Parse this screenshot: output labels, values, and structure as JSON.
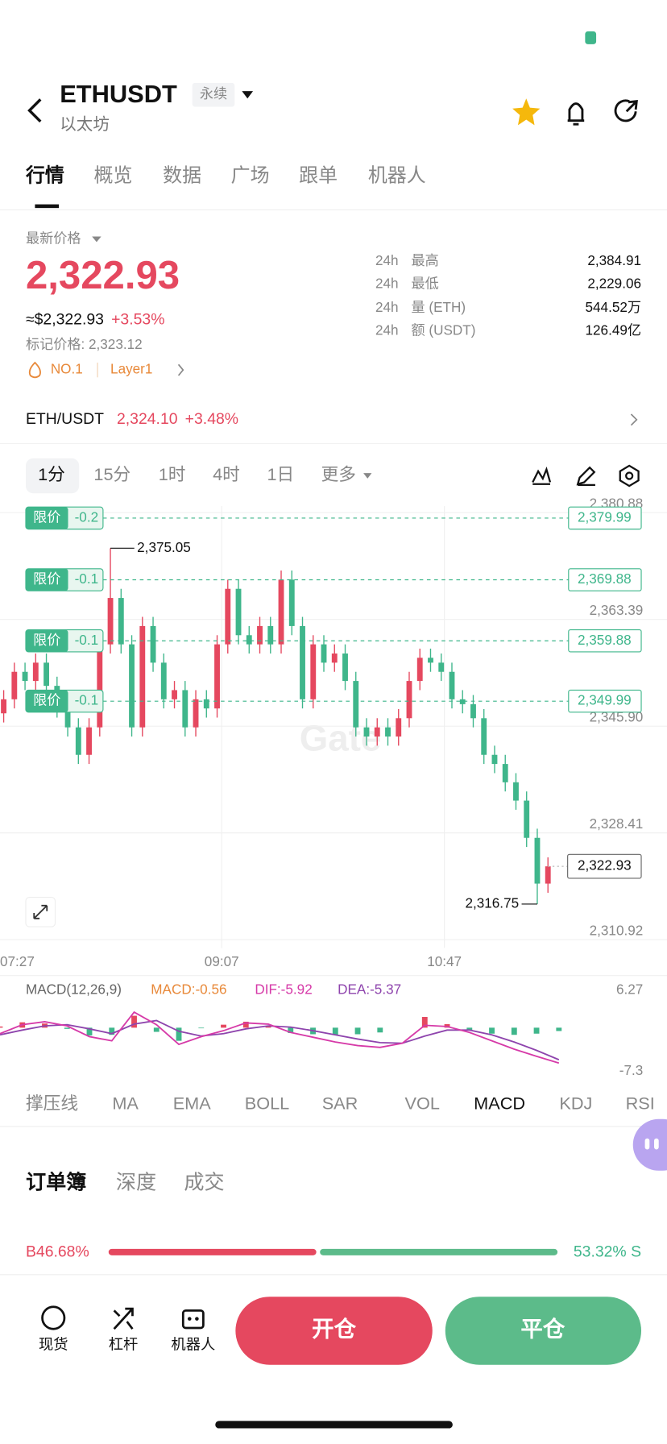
{
  "header": {
    "symbol": "ETHUSDT",
    "tag": "永续",
    "subtitle": "以太坊"
  },
  "tabs": [
    "行情",
    "概览",
    "数据",
    "广场",
    "跟单",
    "机器人"
  ],
  "price": {
    "label": "最新价格",
    "last": "2,322.93",
    "usd": "≈$2,322.93",
    "change": "+3.53%",
    "mark_price": "标记价格: 2,323.12",
    "rank": "NO.1",
    "sector": "Layer1"
  },
  "stats": [
    [
      "24h",
      "最高",
      "2,384.91"
    ],
    [
      "24h",
      "最低",
      "2,229.06"
    ],
    [
      "24h",
      "量 (ETH)",
      "544.52万"
    ],
    [
      "24h",
      "额 (USDT)",
      "126.49亿"
    ]
  ],
  "spot": {
    "pair": "ETH/USDT",
    "price": "2,324.10",
    "change": "+3.48%"
  },
  "intervals": [
    "1分",
    "15分",
    "1时",
    "4时",
    "1日",
    "更多"
  ],
  "chart_data": [
    {
      "type": "candlestick",
      "watermark": "Gate",
      "up_color": "#e5485f",
      "down_color": "#3fb68b",
      "open": [
        2348.0,
        2350.3,
        2354.8,
        2353.3,
        2356.3,
        2352.5,
        2348.8,
        2345.7,
        2341.2,
        2345.7,
        2359.3,
        2366.9,
        2359.3,
        2345.7,
        2362.3,
        2356.3,
        2350.3,
        2351.8,
        2345.7,
        2350.3,
        2348.8,
        2359.3,
        2368.4,
        2360.8,
        2359.3,
        2362.3,
        2359.3,
        2369.9,
        2362.3,
        2350.3,
        2359.3,
        2356.3,
        2357.8,
        2353.3,
        2345.7,
        2344.2,
        2345.7,
        2344.2,
        2347.2,
        2353.3,
        2357.1,
        2356.3,
        2354.8,
        2350.3,
        2349.5,
        2347.2,
        2341.2,
        2339.7,
        2336.7,
        2333.7,
        2327.6,
        2320.1
      ],
      "high": [
        2351.8,
        2356.3,
        2356.3,
        2357.8,
        2357.8,
        2354.0,
        2350.3,
        2347.2,
        2347.2,
        2360.8,
        2375.05,
        2368.4,
        2360.8,
        2363.8,
        2363.8,
        2357.8,
        2353.3,
        2353.3,
        2351.8,
        2351.8,
        2360.8,
        2369.9,
        2369.9,
        2362.3,
        2363.8,
        2363.8,
        2371.4,
        2371.4,
        2363.8,
        2360.8,
        2360.8,
        2359.3,
        2359.3,
        2354.8,
        2347.2,
        2347.2,
        2347.2,
        2348.7,
        2354.8,
        2358.6,
        2358.6,
        2357.8,
        2356.3,
        2351.8,
        2351.0,
        2348.7,
        2342.7,
        2341.2,
        2338.2,
        2335.2,
        2329.1,
        2324.4
      ],
      "low": [
        2346.5,
        2348.8,
        2351.8,
        2351.8,
        2351.0,
        2347.3,
        2344.2,
        2339.7,
        2339.7,
        2344.2,
        2357.8,
        2357.8,
        2344.2,
        2344.2,
        2354.8,
        2348.8,
        2348.8,
        2344.2,
        2344.2,
        2347.3,
        2347.3,
        2357.8,
        2359.3,
        2357.8,
        2357.8,
        2357.8,
        2357.8,
        2360.8,
        2348.8,
        2348.8,
        2354.8,
        2354.8,
        2351.8,
        2344.2,
        2342.7,
        2342.7,
        2342.7,
        2342.7,
        2345.7,
        2351.8,
        2354.8,
        2353.3,
        2348.8,
        2348.0,
        2345.7,
        2339.7,
        2338.2,
        2335.2,
        2332.2,
        2326.1,
        2316.75,
        2318.6
      ],
      "close": [
        2350.3,
        2354.8,
        2353.3,
        2356.3,
        2352.5,
        2348.8,
        2345.7,
        2341.2,
        2345.7,
        2359.3,
        2366.9,
        2359.3,
        2345.7,
        2362.3,
        2356.3,
        2350.3,
        2351.8,
        2345.7,
        2350.3,
        2348.8,
        2359.3,
        2368.4,
        2360.8,
        2359.3,
        2362.3,
        2359.3,
        2369.9,
        2362.3,
        2350.3,
        2359.3,
        2356.3,
        2357.8,
        2353.3,
        2345.7,
        2344.2,
        2345.7,
        2344.2,
        2347.2,
        2353.3,
        2357.1,
        2356.3,
        2354.8,
        2350.3,
        2349.5,
        2347.2,
        2341.2,
        2339.7,
        2336.7,
        2333.7,
        2327.6,
        2320.1,
        2322.93
      ],
      "ylim": [
        2310.92,
        2380.88
      ],
      "yticks": [
        {
          "value": 2380.88,
          "label": "2,380.88"
        },
        {
          "value": 2363.39,
          "label": "2,363.39"
        },
        {
          "value": 2345.9,
          "label": "2,345.90"
        },
        {
          "value": 2328.41,
          "label": "2,328.41"
        },
        {
          "value": 2310.92,
          "label": "2,310.92"
        }
      ],
      "time_labels": [
        "07:27",
        "09:07",
        "10:47"
      ],
      "annotations": [
        {
          "value": 2375.05,
          "label": "2,375.05"
        },
        {
          "value": 2316.75,
          "label": "2,316.75"
        }
      ],
      "limit_orders": [
        {
          "label": "限价",
          "offset": -0.2,
          "price": {
            "value": 2379.99,
            "label": "2,379.99"
          }
        },
        {
          "label": "限价",
          "offset": -0.1,
          "price": {
            "value": 2369.88,
            "label": "2,369.88"
          }
        },
        {
          "label": "限价",
          "offset": -0.1,
          "price": {
            "value": 2359.88,
            "label": "2,359.88"
          }
        },
        {
          "label": "限价",
          "offset": -0.1,
          "price": {
            "value": 2349.99,
            "label": "2,349.99"
          }
        }
      ],
      "last_price": {
        "value": 2322.93,
        "label": "2,322.93"
      },
      "limit_color": "#3fb68b"
    },
    {
      "type": "macd",
      "title": "MACD(12,26,9)",
      "macd_label": "MACD:-0.56",
      "dif_label": "DIF:-5.92",
      "dea_label": "DEA:-5.37",
      "dif_color": "#d63aa8",
      "dea_color": "#8e44ad",
      "macd_color": "#e8893a",
      "dif": [
        -1.0,
        0.5,
        1.0,
        0.3,
        -1.5,
        -2.2,
        2.6,
        0.5,
        -2.8,
        -1.5,
        -0.5,
        0.8,
        0.6,
        -0.8,
        -1.6,
        -2.4,
        -3.0,
        -3.3,
        -2.6,
        0.4,
        0.2,
        -0.8,
        -2.2,
        -3.6,
        -4.8,
        -5.92
      ],
      "dea": [
        -1.2,
        -0.4,
        0.3,
        0.5,
        -0.2,
        -1.0,
        0.6,
        1.2,
        -0.6,
        -1.4,
        -1.0,
        -0.2,
        0.3,
        0.1,
        -0.5,
        -1.2,
        -1.9,
        -2.5,
        -2.6,
        -1.4,
        -0.4,
        -0.4,
        -1.2,
        -2.4,
        -3.8,
        -5.37
      ],
      "macd": [
        0.2,
        0.9,
        0.7,
        -0.2,
        -1.3,
        -1.2,
        2.0,
        -0.7,
        -2.2,
        -0.1,
        0.5,
        1.0,
        0.3,
        -0.9,
        -1.1,
        -1.2,
        -1.1,
        -0.8,
        0.0,
        1.8,
        0.6,
        -0.4,
        -1.0,
        -1.2,
        -1.0,
        -0.56
      ],
      "ylim": [
        -7.3,
        6.27
      ],
      "yticks": [
        6.27,
        -7.3
      ]
    }
  ],
  "indicators": [
    "撑压线",
    "MA",
    "EMA",
    "BOLL",
    "SAR",
    "VOL",
    "MACD",
    "KDJ",
    "RSI"
  ],
  "orderbook": {
    "tabs": [
      "订单簿",
      "深度",
      "成交"
    ],
    "buy": 46.68,
    "buy_label": "B46.68%",
    "sell": 53.32,
    "sell_label": "53.32% S"
  },
  "nav": [
    "现货",
    "杠杆",
    "机器人"
  ],
  "actions": {
    "open": "开仓",
    "close": "平仓"
  }
}
